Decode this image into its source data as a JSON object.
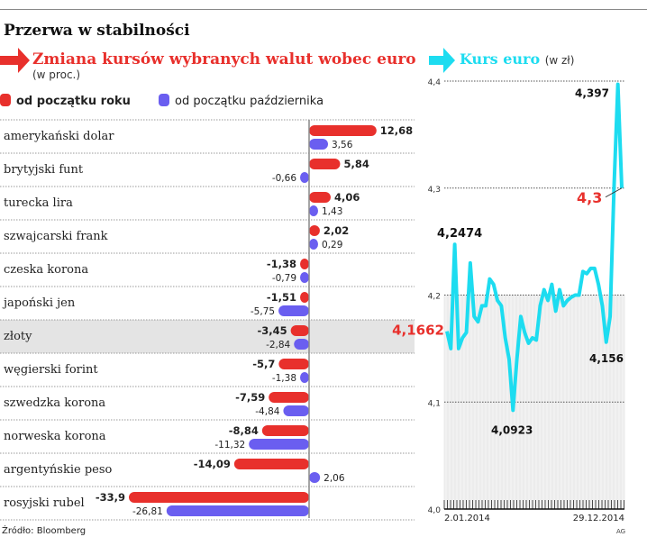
{
  "header": {
    "title": "Przerwa w stabilności",
    "footer_source": "Źródło: Bloomberg",
    "credit": "AG"
  },
  "chart_data": [
    {
      "type": "bar",
      "title": "Zmiana kursów wybranych walut wobec euro",
      "unit": "(w proc.)",
      "categories": [
        "amerykański dolar",
        "brytyjski funt",
        "turecka lira",
        "szwajcarski frank",
        "czeska korona",
        "japoński jen",
        "złoty",
        "węgierski forint",
        "szwedzka korona",
        "norweska korona",
        "argentyńskie peso",
        "rosyjski rubel"
      ],
      "highlight": "złoty",
      "series": [
        {
          "name": "od początku roku",
          "color": "#e8302c",
          "values": [
            12.68,
            5.84,
            4.06,
            2.02,
            -1.38,
            -1.51,
            -3.45,
            -5.7,
            -7.59,
            -8.84,
            -14.09,
            -33.9
          ],
          "labels": [
            "12,68",
            "5,84",
            "4,06",
            "2,02",
            "-1,38",
            "-1,51",
            "-3,45",
            "-5,7",
            "-7,59",
            "-8,84",
            "-14,09",
            "-33,9"
          ]
        },
        {
          "name": "od początku października",
          "color": "#6a5ef0",
          "values": [
            3.56,
            -0.66,
            1.43,
            0.29,
            -0.79,
            -5.75,
            -2.84,
            -1.38,
            -4.84,
            -11.32,
            2.06,
            -26.81
          ],
          "labels": [
            "3,56",
            "-0,66",
            "1,43",
            "0,29",
            "-0,79",
            "-5,75",
            "-2,84",
            "-1,38",
            "-4,84",
            "-11,32",
            "2,06",
            "-26,81"
          ]
        }
      ]
    },
    {
      "type": "line",
      "title": "Kurs euro",
      "unit": "(w zł)",
      "color": "#1ddcf0",
      "x_start": "2.01.2014",
      "x_end": "29.12.2014",
      "ylim": [
        4.0,
        4.4
      ],
      "yticks": [
        "4,0",
        "4,1",
        "4,2",
        "4,3",
        "4,4"
      ],
      "values": [
        4.1662,
        4.15,
        4.2474,
        4.15,
        4.16,
        4.165,
        4.23,
        4.18,
        4.175,
        4.19,
        4.19,
        4.215,
        4.21,
        4.195,
        4.19,
        4.16,
        4.14,
        4.0923,
        4.14,
        4.18,
        4.165,
        4.155,
        4.16,
        4.158,
        4.19,
        4.205,
        4.195,
        4.21,
        4.185,
        4.205,
        4.19,
        4.195,
        4.198,
        4.2,
        4.2,
        4.222,
        4.22,
        4.225,
        4.225,
        4.21,
        4.19,
        4.156,
        4.18,
        4.3,
        4.397,
        4.3
      ],
      "annotations": [
        {
          "label": "4,1662",
          "value": 4.1662,
          "color": "#e8302c"
        },
        {
          "label": "4,2474",
          "value": 4.2474
        },
        {
          "label": "4,0923",
          "value": 4.0923
        },
        {
          "label": "4,156",
          "value": 4.156
        },
        {
          "label": "4,397",
          "value": 4.397
        },
        {
          "label": "4,3",
          "value": 4.3,
          "color": "#e8302c"
        }
      ]
    }
  ]
}
